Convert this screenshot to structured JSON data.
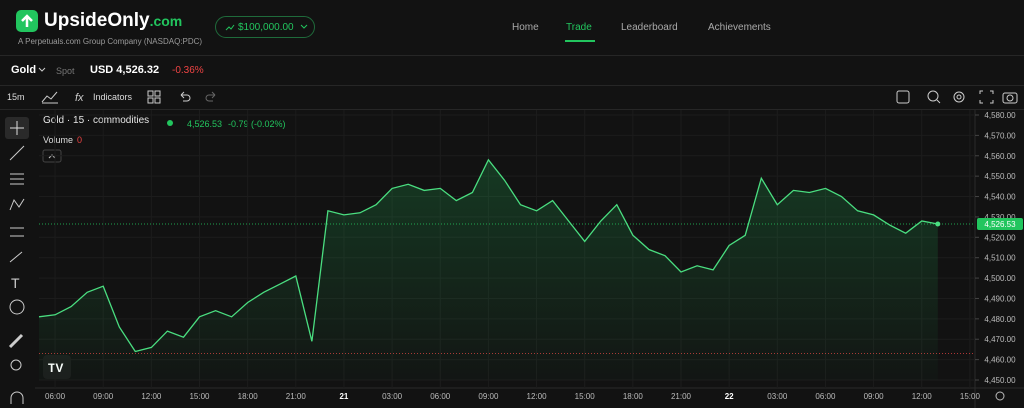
{
  "header": {
    "logo_name": "UpsideOnly",
    "logo_suffix": ".com",
    "tagline": "A Perpetuals.com Group Company (NASDAQ:PDC)",
    "balance": "$100,000.00",
    "nav": [
      "Home",
      "Trade",
      "Leaderboard",
      "Achievements"
    ]
  },
  "ticker": {
    "symbol": "Gold",
    "kind": "Spot",
    "price": "USD 4,526.32",
    "change": "-0.36%"
  },
  "toolbar": {
    "interval": "15m",
    "indicators": "Indicators"
  },
  "chart_data": {
    "type": "line",
    "title": "Gold · 15 · commodities",
    "last_value": "4,526.53",
    "last_change": "-0.79 (-0.02%)",
    "volume_label": "Volume",
    "volume_value": "0",
    "categories": [
      null,
      "06:00",
      null,
      null,
      "09:00",
      null,
      null,
      "12:00",
      null,
      null,
      "15:00",
      null,
      null,
      "18:00",
      null,
      null,
      "21:00",
      null,
      null,
      "21",
      null,
      null,
      "03:00",
      null,
      null,
      "06:00",
      null,
      null,
      "09:00",
      null,
      null,
      "12:00",
      null,
      null,
      "15:00",
      null,
      null,
      "18:00",
      null,
      null,
      "21:00",
      null,
      null,
      "22",
      null,
      null,
      "03:00",
      null,
      null,
      "06:00",
      null,
      null,
      "09:00",
      null,
      null,
      "12:00",
      null,
      null,
      "15:00"
    ],
    "series": [
      {
        "name": "Gold",
        "color": "#4ade80",
        "values": [
          4481,
          4482,
          4486,
          4493,
          4496,
          4476,
          4464,
          4466,
          4474,
          4471,
          4481,
          4484,
          4481,
          4488,
          4493,
          4497,
          4501,
          4469,
          4533,
          4531,
          4532,
          4536,
          4544,
          4546,
          4543,
          4544,
          4538,
          4542,
          4558,
          4548,
          4536,
          4533,
          4538,
          4528,
          4518,
          4528,
          4536,
          4521,
          4514,
          4511,
          4503,
          4506,
          4504,
          4516,
          4521,
          4549,
          4536,
          4543,
          4542,
          4544,
          4540,
          4533,
          4531,
          4526,
          4522,
          4528,
          4526.53,
          null,
          null
        ]
      }
    ],
    "ylim": [
      4450,
      4580
    ],
    "yticks": [
      {
        "value": 4450,
        "label": "4,450.00"
      },
      {
        "value": 4460,
        "label": "4,460.00"
      },
      {
        "value": 4470,
        "label": "4,470.00"
      },
      {
        "value": 4480,
        "label": "4,480.00"
      },
      {
        "value": 4490,
        "label": "4,490.00"
      },
      {
        "value": 4500,
        "label": "4,500.00"
      },
      {
        "value": 4510,
        "label": "4,510.00"
      },
      {
        "value": 4520,
        "label": "4,520.00"
      },
      {
        "value": 4530,
        "label": "4,530.00"
      },
      {
        "value": 4540,
        "label": "4,540.00"
      },
      {
        "value": 4550,
        "label": "4,550.00"
      },
      {
        "value": 4560,
        "label": "4,560.00"
      },
      {
        "value": 4570,
        "label": "4,570.00"
      },
      {
        "value": 4580,
        "label": "4,580.00"
      }
    ],
    "last_line": {
      "value": 4526.53,
      "color": "#22c55e"
    },
    "reference_line": {
      "value": 4463,
      "color": "#ef4444"
    },
    "grid": true
  }
}
